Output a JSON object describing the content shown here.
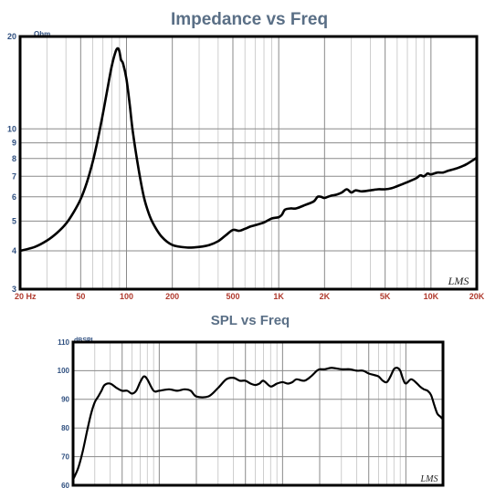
{
  "chart_data": [
    {
      "type": "line",
      "title": "Impedance vs Freq",
      "unit_label": "Ohm",
      "logo": "LMS",
      "x_scale": "log",
      "y_scale": "log",
      "xlim": [
        20,
        20000
      ],
      "ylim": [
        3,
        20
      ],
      "x_ticks": [
        {
          "value": 20,
          "label": "20 Hz"
        },
        {
          "value": 50,
          "label": "50"
        },
        {
          "value": 100,
          "label": "100"
        },
        {
          "value": 200,
          "label": "200"
        },
        {
          "value": 500,
          "label": "500"
        },
        {
          "value": 1000,
          "label": "1K"
        },
        {
          "value": 2000,
          "label": "2K"
        },
        {
          "value": 5000,
          "label": "5K"
        },
        {
          "value": 10000,
          "label": "10K"
        },
        {
          "value": 20000,
          "label": "20K"
        }
      ],
      "y_ticks": [
        {
          "value": 3,
          "label": "3"
        },
        {
          "value": 4,
          "label": "4"
        },
        {
          "value": 5,
          "label": "5"
        },
        {
          "value": 6,
          "label": "6"
        },
        {
          "value": 7,
          "label": "7"
        },
        {
          "value": 8,
          "label": "8"
        },
        {
          "value": 9,
          "label": "9"
        },
        {
          "value": 10,
          "label": "10"
        },
        {
          "value": 20,
          "label": "20"
        }
      ],
      "grid": true,
      "series": [
        {
          "color": "#000000",
          "x": [
            20,
            25,
            30,
            35,
            40,
            45,
            50,
            55,
            60,
            65,
            70,
            75,
            80,
            85,
            88,
            90,
            92,
            95,
            100,
            105,
            110,
            120,
            130,
            140,
            150,
            170,
            200,
            250,
            300,
            350,
            400,
            450,
            500,
            550,
            600,
            650,
            700,
            800,
            900,
            1000,
            1050,
            1100,
            1200,
            1300,
            1500,
            1700,
            1800,
            1900,
            2000,
            2200,
            2400,
            2600,
            2800,
            3000,
            3200,
            3500,
            4000,
            4500,
            5000,
            5500,
            6000,
            7000,
            8000,
            8500,
            9000,
            9500,
            10000,
            11000,
            12000,
            13000,
            15000,
            17000,
            20000
          ],
          "y": [
            4.0,
            4.12,
            4.32,
            4.58,
            4.9,
            5.35,
            5.9,
            6.7,
            7.8,
            9.3,
            11.2,
            13.5,
            16.0,
            17.9,
            18.3,
            17.8,
            16.8,
            16.3,
            14.5,
            12.0,
            9.8,
            7.4,
            6.0,
            5.3,
            4.9,
            4.45,
            4.18,
            4.1,
            4.12,
            4.18,
            4.3,
            4.5,
            4.68,
            4.65,
            4.72,
            4.8,
            4.85,
            4.95,
            5.1,
            5.15,
            5.25,
            5.45,
            5.5,
            5.5,
            5.65,
            5.8,
            6.0,
            6.0,
            5.95,
            6.05,
            6.1,
            6.2,
            6.35,
            6.2,
            6.3,
            6.25,
            6.3,
            6.35,
            6.35,
            6.4,
            6.5,
            6.7,
            6.9,
            7.05,
            7.0,
            7.15,
            7.1,
            7.2,
            7.2,
            7.3,
            7.45,
            7.65,
            8.05
          ]
        }
      ]
    },
    {
      "type": "line",
      "title": "SPL vs Freq",
      "unit_label": "dBSPL",
      "logo": "LMS",
      "x_scale": "log",
      "y_scale": "linear",
      "xlim": [
        20,
        20000
      ],
      "ylim": [
        60,
        110
      ],
      "y_ticks": [
        {
          "value": 60,
          "label": "60"
        },
        {
          "value": 70,
          "label": "70"
        },
        {
          "value": 80,
          "label": "80"
        },
        {
          "value": 90,
          "label": "90"
        },
        {
          "value": 100,
          "label": "100"
        },
        {
          "value": 110,
          "label": "110"
        }
      ],
      "grid": true,
      "series": [
        {
          "color": "#000000",
          "x": [
            20,
            22,
            24,
            26,
            28,
            30,
            32,
            34,
            36,
            40,
            45,
            50,
            55,
            60,
            65,
            70,
            75,
            80,
            90,
            100,
            120,
            140,
            160,
            180,
            200,
            250,
            300,
            350,
            400,
            450,
            500,
            550,
            600,
            650,
            700,
            800,
            900,
            1000,
            1100,
            1200,
            1300,
            1500,
            1700,
            1900,
            2000,
            2200,
            2500,
            3000,
            3500,
            4000,
            4500,
            5000,
            5500,
            6000,
            6500,
            7000,
            7500,
            8000,
            8500,
            9000,
            9500,
            10000,
            11000,
            12000,
            13000,
            14000,
            15000,
            16000,
            17000,
            18000,
            19000,
            20000
          ],
          "y": [
            62,
            66,
            72,
            79,
            85,
            89,
            91,
            93,
            95,
            95.5,
            94,
            93,
            93,
            92,
            93,
            96,
            98,
            97,
            93,
            93,
            93.5,
            93,
            93.5,
            93,
            91,
            91,
            94,
            97,
            97.5,
            96.5,
            96.5,
            95.5,
            95,
            95.5,
            96.5,
            94.5,
            95.5,
            96,
            95.5,
            96,
            97,
            96.5,
            98,
            100,
            100.5,
            100.5,
            101,
            100.5,
            100.5,
            100,
            100,
            99,
            98.5,
            98,
            96.5,
            96,
            98,
            100.5,
            101,
            100,
            97,
            95.5,
            97,
            96,
            94.5,
            93.5,
            93,
            91.5,
            88,
            85,
            84,
            83
          ]
        }
      ]
    }
  ]
}
